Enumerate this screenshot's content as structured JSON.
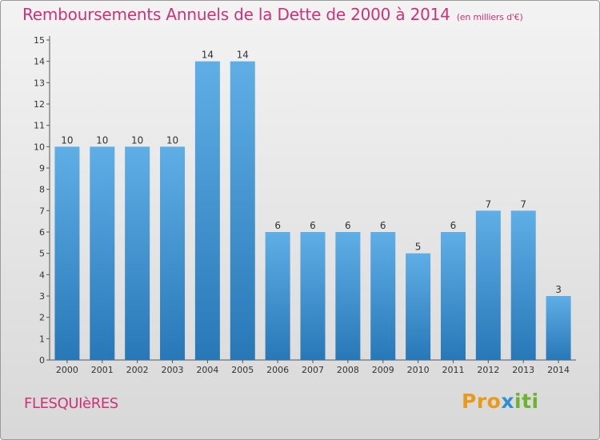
{
  "title": "Remboursements Annuels de la Dette de 2000 à 2014",
  "subtitle": "(en milliers d'€)",
  "town": "FLESQUIèRES",
  "logo": {
    "letters": [
      "P",
      "r",
      "o",
      "x",
      "i",
      "t",
      "i"
    ],
    "colors": [
      "#e89a1c",
      "#e89a1c",
      "#e89a1c",
      "#2f8fd0",
      "#6db32e",
      "#6db32e",
      "#6db32e"
    ]
  },
  "colors": {
    "bar_light": "#5faee6",
    "bar_dark": "#2878b8",
    "text": "#cc3377"
  },
  "chart_data": {
    "type": "bar",
    "title": "Remboursements Annuels de la Dette de 2000 à 2014",
    "subtitle": "(en milliers d'€)",
    "categories": [
      "2000",
      "2001",
      "2002",
      "2003",
      "2004",
      "2005",
      "2006",
      "2007",
      "2008",
      "2009",
      "2010",
      "2011",
      "2012",
      "2013",
      "2014"
    ],
    "values": [
      10,
      10,
      10,
      10,
      14,
      14,
      6,
      6,
      6,
      6,
      5,
      6,
      7,
      7,
      3
    ],
    "yticks": [
      0,
      1,
      2,
      3,
      4,
      5,
      6,
      7,
      8,
      9,
      10,
      11,
      12,
      13,
      14,
      15
    ],
    "ylim": [
      0,
      15
    ],
    "xlabel": "",
    "ylabel": "",
    "grid": false,
    "legend": "none"
  }
}
